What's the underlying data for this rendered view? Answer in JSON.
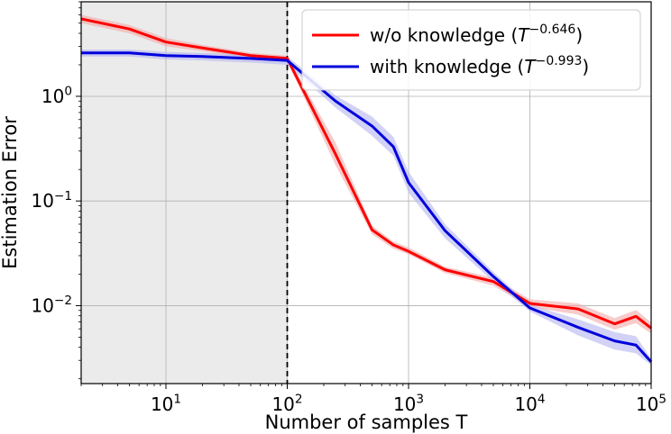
{
  "chart_data": {
    "type": "line",
    "title": "",
    "xlabel": "Number of samples T",
    "ylabel": "Estimation Error",
    "xscale": "log",
    "yscale": "log",
    "xlim": [
      2,
      100000
    ],
    "ylim": [
      0.0018,
      8
    ],
    "grid": true,
    "legend_position": "top-right",
    "x_ticks": [
      {
        "value": 10,
        "base": "10",
        "exp": "1"
      },
      {
        "value": 100,
        "base": "10",
        "exp": "2"
      },
      {
        "value": 1000,
        "base": "10",
        "exp": "3"
      },
      {
        "value": 10000,
        "base": "10",
        "exp": "4"
      },
      {
        "value": 100000,
        "base": "10",
        "exp": "5"
      }
    ],
    "y_ticks": [
      {
        "value": 1,
        "base": "10",
        "exp": "0"
      },
      {
        "value": 0.1,
        "base": "10",
        "exp": "−1"
      },
      {
        "value": 0.01,
        "base": "10",
        "exp": "−2"
      }
    ],
    "shaded_region": {
      "x_start": 2,
      "x_end": 100,
      "color": "#ebebeb"
    },
    "vertical_line": {
      "x": 100,
      "style": "dashed",
      "color": "#000000"
    },
    "series": [
      {
        "name": "w/o knowledge",
        "rate_base": "T",
        "rate_exp": "−0.646",
        "color": "#ff0000",
        "band_color": "#f4a8a8",
        "x": [
          2,
          5,
          10,
          20,
          50,
          100,
          250,
          500,
          750,
          1000,
          2000,
          5000,
          10000,
          25000,
          50000,
          75000,
          100000
        ],
        "values": [
          5.5,
          4.4,
          3.3,
          2.9,
          2.45,
          2.3,
          0.28,
          0.053,
          0.038,
          0.033,
          0.022,
          0.017,
          0.0105,
          0.0093,
          0.0067,
          0.0079,
          0.0061
        ],
        "lower": [
          5.0,
          4.0,
          3.0,
          2.7,
          2.3,
          2.15,
          0.22,
          0.048,
          0.035,
          0.031,
          0.0205,
          0.0155,
          0.0097,
          0.0082,
          0.0059,
          0.0068,
          0.0054
        ],
        "upper": [
          6.0,
          4.8,
          3.6,
          3.1,
          2.6,
          2.45,
          0.36,
          0.058,
          0.041,
          0.036,
          0.0235,
          0.0185,
          0.0115,
          0.0105,
          0.0076,
          0.0091,
          0.0069
        ]
      },
      {
        "name": "with knowledge",
        "rate_base": "T",
        "rate_exp": "−0.993",
        "color": "#0000dd",
        "band_color": "#b4b4f0",
        "x": [
          2,
          5,
          10,
          20,
          50,
          100,
          250,
          500,
          750,
          1000,
          2000,
          5000,
          10000,
          25000,
          50000,
          75000,
          100000
        ],
        "values": [
          2.6,
          2.6,
          2.45,
          2.4,
          2.3,
          2.2,
          0.9,
          0.52,
          0.33,
          0.15,
          0.052,
          0.019,
          0.0095,
          0.0062,
          0.0046,
          0.0042,
          0.0029
        ],
        "lower": [
          2.4,
          2.4,
          2.25,
          2.2,
          2.1,
          2.0,
          0.78,
          0.42,
          0.27,
          0.12,
          0.044,
          0.017,
          0.0088,
          0.0052,
          0.0038,
          0.0035,
          0.0027
        ],
        "upper": [
          2.8,
          2.8,
          2.65,
          2.6,
          2.5,
          2.4,
          1.02,
          0.64,
          0.41,
          0.19,
          0.06,
          0.021,
          0.0102,
          0.0074,
          0.0056,
          0.0051,
          0.0031
        ]
      }
    ]
  }
}
